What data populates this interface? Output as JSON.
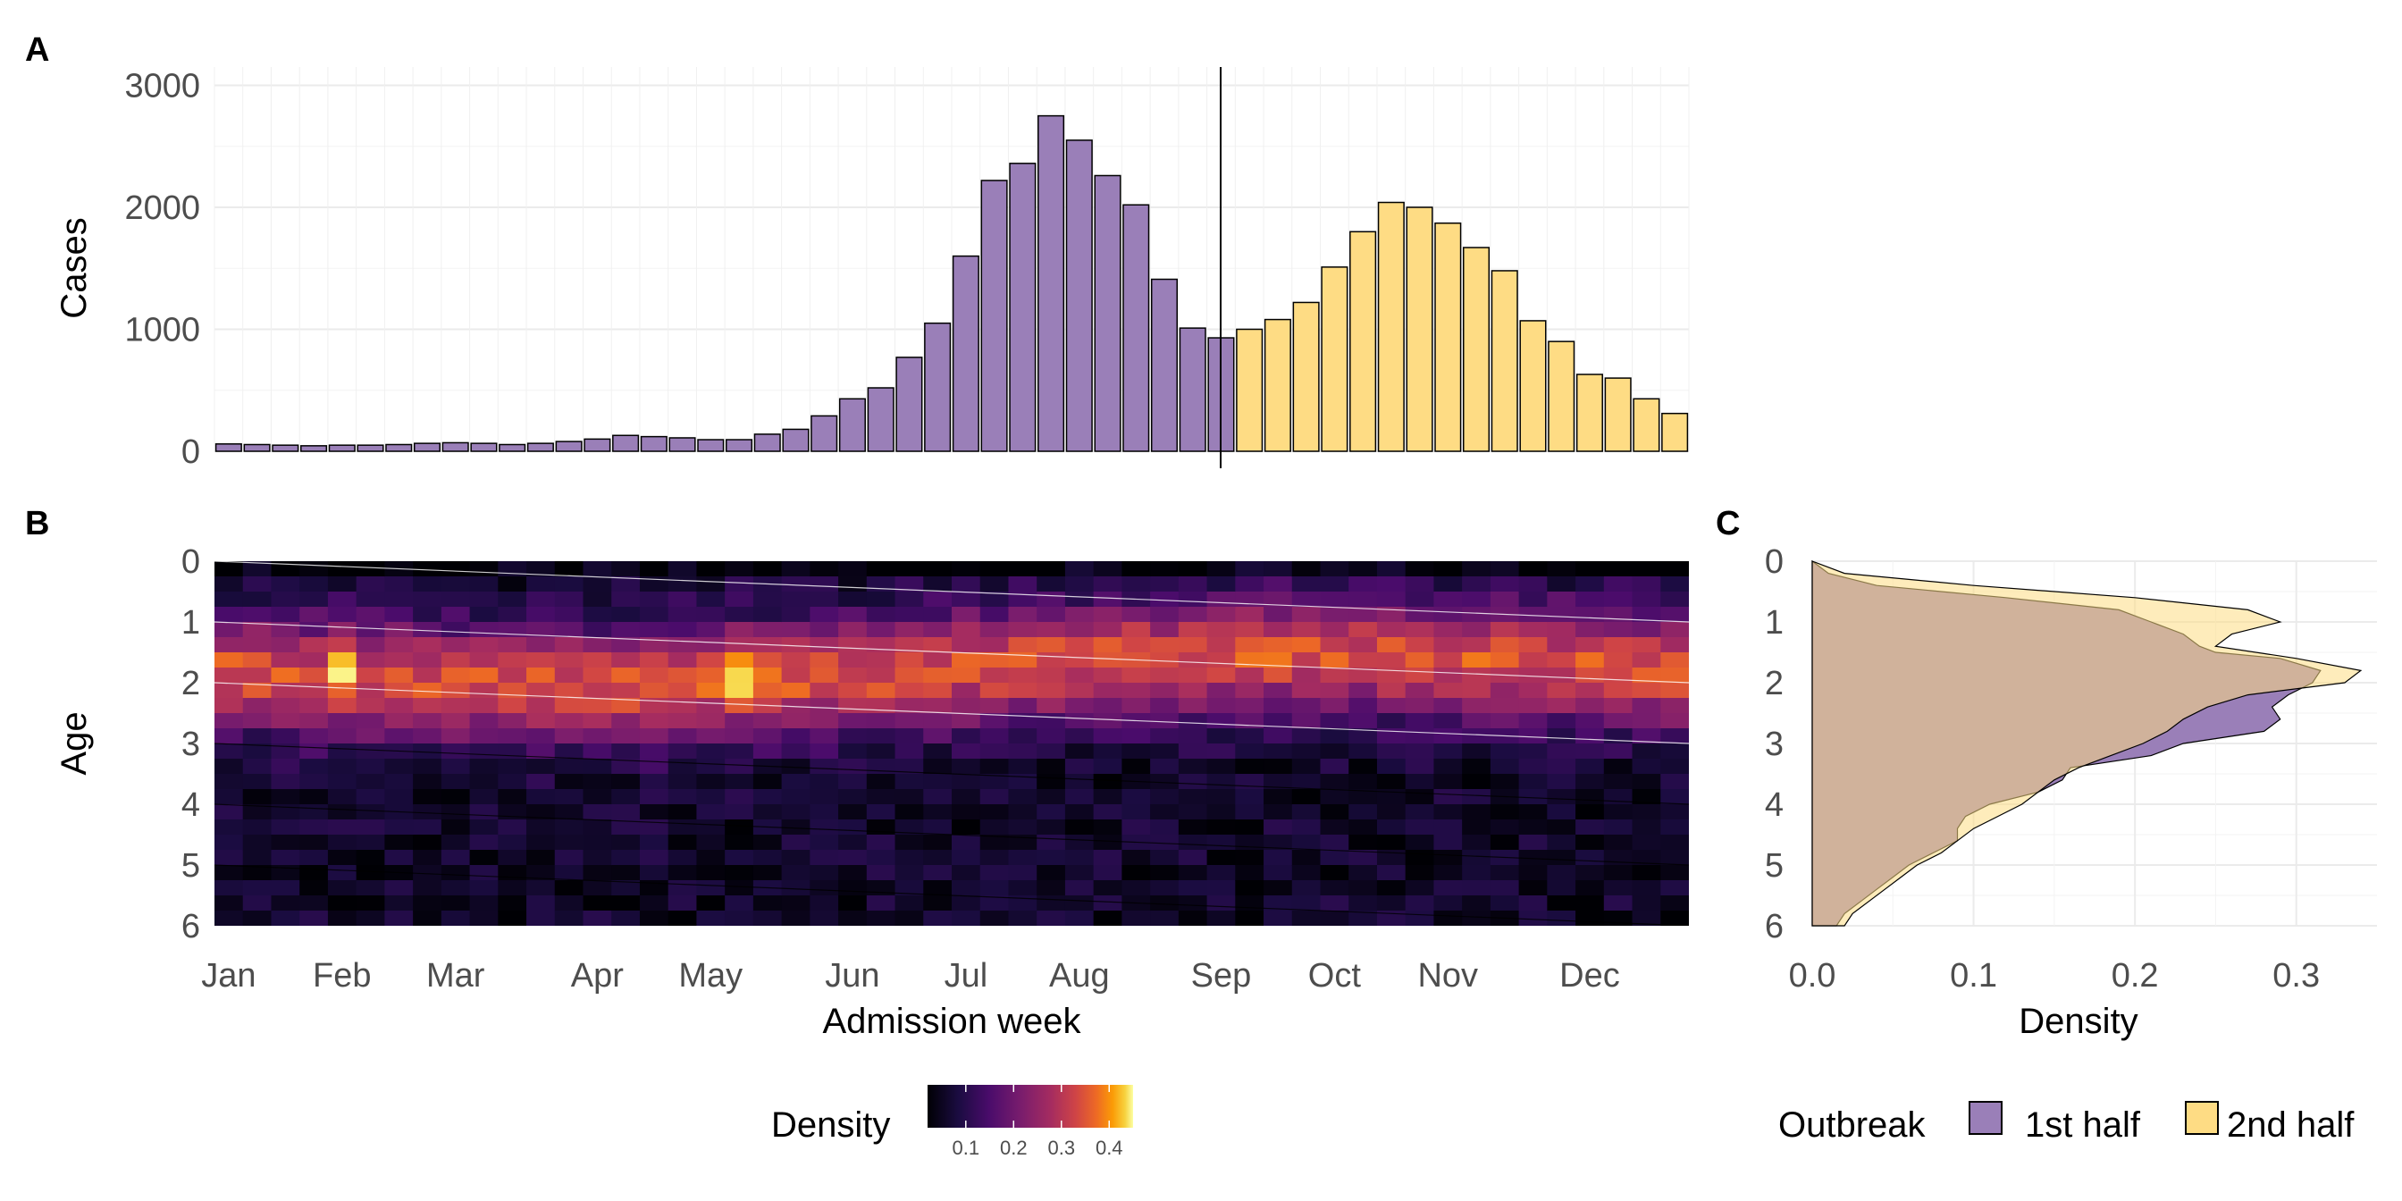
{
  "panels": {
    "a": {
      "tag": "A",
      "chart_data": {
        "type": "bar",
        "ylabel": "Cases",
        "xlabel": "",
        "ylim": [
          0,
          3150
        ],
        "yticks": [
          0,
          1000,
          2000,
          3000
        ],
        "split_week_index": 34,
        "series": [
          {
            "name": "1st half",
            "color": "#9a7fb8",
            "values": [
              60,
              55,
              50,
              45,
              50,
              50,
              55,
              65,
              70,
              65,
              55,
              65,
              80,
              100,
              130,
              120,
              110,
              95,
              95,
              140,
              180,
              290,
              430,
              520,
              770,
              1050,
              1600,
              2220,
              2360,
              2750,
              2550,
              2260,
              2020,
              1410,
              1010,
              930
            ]
          },
          {
            "name": "2nd half",
            "color": "#fedc84",
            "values": [
              1000,
              1080,
              1220,
              1510,
              1800,
              2040,
              2000,
              1870,
              1670,
              1480,
              1070,
              900,
              630,
              600,
              430,
              310
            ]
          }
        ]
      }
    },
    "b": {
      "tag": "B",
      "chart_data": {
        "type": "heatmap",
        "xlabel": "Admission week",
        "ylabel": "Age",
        "ylim": [
          0,
          6
        ],
        "yticks": [
          "0",
          "1",
          "2",
          "3",
          "4",
          "5",
          "6"
        ],
        "x_ticks": [
          "Jan",
          "Feb",
          "Mar",
          "Apr",
          "May",
          "Jun",
          "Jul",
          "Aug",
          "Sep",
          "Oct",
          "Nov",
          "Dec"
        ],
        "x_tick_weeks": [
          0.5,
          4.5,
          8.5,
          13.5,
          17.5,
          22.5,
          26.5,
          30.5,
          35.5,
          39.5,
          43.5,
          48.5
        ],
        "n_weeks": 52,
        "age_rows": 24,
        "colorbar": {
          "title": "Density",
          "ticks": [
            "0.1",
            "0.2",
            "0.3",
            "0.4"
          ],
          "tick_values": [
            0.1,
            0.2,
            0.3,
            0.4
          ],
          "range": [
            0.02,
            0.45
          ]
        },
        "reference_lines": [
          {
            "start": 0,
            "end": 1,
            "color": "#ffffff"
          },
          {
            "start": 1,
            "end": 2,
            "color": "#ffffff"
          },
          {
            "start": 2,
            "end": 3,
            "color": "#ffffff"
          },
          {
            "start": 3,
            "end": 4,
            "color": "#000000"
          },
          {
            "start": 4,
            "end": 5,
            "color": "#000000"
          },
          {
            "start": 5,
            "end": 6,
            "color": "#000000"
          }
        ]
      }
    },
    "c": {
      "tag": "C",
      "chart_data": {
        "type": "area",
        "xlabel": "Density",
        "ylabel": "",
        "xlim": [
          0,
          0.35
        ],
        "xticks": [
          "0.0",
          "0.1",
          "0.2",
          "0.3"
        ],
        "ylim": [
          0,
          6
        ],
        "yticks": [
          "0",
          "1",
          "2",
          "3",
          "4",
          "5",
          "6"
        ],
        "series": [
          {
            "name": "1st half",
            "color": "#9a7fb8",
            "age": [
              0,
              0.2,
              0.4,
              0.6,
              0.8,
              1.0,
              1.2,
              1.4,
              1.5,
              1.6,
              1.8,
              2.0,
              2.2,
              2.4,
              2.6,
              2.8,
              3.0,
              3.2,
              3.4,
              3.6,
              3.8,
              4.0,
              4.2,
              4.4,
              4.6,
              4.8,
              5.0,
              5.2,
              5.4,
              5.6,
              5.8,
              6.0
            ],
            "density": [
              0.0,
              0.01,
              0.04,
              0.12,
              0.19,
              0.21,
              0.23,
              0.24,
              0.25,
              0.29,
              0.315,
              0.31,
              0.295,
              0.285,
              0.29,
              0.28,
              0.23,
              0.21,
              0.16,
              0.155,
              0.14,
              0.11,
              0.095,
              0.09,
              0.09,
              0.075,
              0.06,
              0.05,
              0.04,
              0.03,
              0.02,
              0.015
            ]
          },
          {
            "name": "2nd half",
            "color": "#fedc84",
            "age": [
              0,
              0.2,
              0.4,
              0.6,
              0.8,
              1.0,
              1.2,
              1.4,
              1.6,
              1.8,
              2.0,
              2.2,
              2.4,
              2.6,
              2.8,
              3.0,
              3.2,
              3.4,
              3.6,
              3.8,
              4.0,
              4.2,
              4.4,
              4.6,
              4.8,
              5.0,
              5.2,
              5.4,
              5.6,
              5.8,
              6.0
            ],
            "density": [
              0.0,
              0.02,
              0.1,
              0.2,
              0.27,
              0.29,
              0.26,
              0.25,
              0.3,
              0.34,
              0.33,
              0.27,
              0.245,
              0.23,
              0.22,
              0.205,
              0.185,
              0.165,
              0.15,
              0.14,
              0.13,
              0.115,
              0.1,
              0.09,
              0.08,
              0.065,
              0.055,
              0.045,
              0.035,
              0.025,
              0.02
            ]
          }
        ]
      }
    }
  },
  "legend": {
    "title": "Outbreak",
    "items": [
      {
        "label": "1st half",
        "color": "#9a7fb8"
      },
      {
        "label": "2nd half",
        "color": "#fedc84"
      }
    ]
  }
}
